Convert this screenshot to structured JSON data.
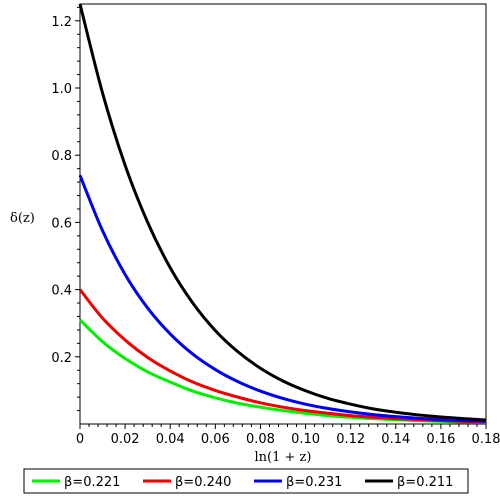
{
  "chart_data": {
    "type": "line",
    "title": "",
    "xlabel": "ln(1 + z)",
    "ylabel": "δ(z)",
    "xlim": [
      0,
      0.18
    ],
    "ylim": [
      0,
      1.25
    ],
    "xticks": [
      0,
      0.02,
      0.04,
      0.06,
      0.08,
      0.1,
      0.12,
      0.14,
      0.16,
      0.18
    ],
    "xtick_labels": [
      "0",
      "0.02",
      "0.04",
      "0.06",
      "0.08",
      "0.10",
      "0.12",
      "0.14",
      "0.16",
      "0.18"
    ],
    "yticks": [
      0.2,
      0.4,
      0.6,
      0.8,
      1.0,
      1.2
    ],
    "ytick_labels": [
      "0.2",
      "0.4",
      "0.6",
      "0.8",
      "1.0",
      "1.2"
    ],
    "grid": false,
    "legend_position": "bottom",
    "series": [
      {
        "name": "β=0.221",
        "color": "#00ee00",
        "x": [
          0,
          0.01,
          0.02,
          0.03,
          0.04,
          0.05,
          0.06,
          0.07,
          0.08,
          0.09,
          0.1,
          0.11,
          0.12,
          0.13,
          0.14,
          0.15,
          0.16,
          0.17,
          0.18
        ],
        "y": [
          0.31,
          0.245,
          0.195,
          0.155,
          0.125,
          0.098,
          0.078,
          0.062,
          0.05,
          0.04,
          0.032,
          0.025,
          0.02,
          0.016,
          0.013,
          0.01,
          0.008,
          0.006,
          0.005
        ]
      },
      {
        "name": "β=0.240",
        "color": "#ee0000",
        "x": [
          0,
          0.01,
          0.02,
          0.03,
          0.04,
          0.05,
          0.06,
          0.07,
          0.08,
          0.09,
          0.1,
          0.11,
          0.12,
          0.13,
          0.14,
          0.15,
          0.16,
          0.17,
          0.18
        ],
        "y": [
          0.4,
          0.315,
          0.25,
          0.198,
          0.158,
          0.125,
          0.1,
          0.08,
          0.063,
          0.05,
          0.04,
          0.032,
          0.025,
          0.02,
          0.016,
          0.013,
          0.01,
          0.008,
          0.006
        ]
      },
      {
        "name": "β=0.231",
        "color": "#0000ee",
        "x": [
          0,
          0.01,
          0.02,
          0.03,
          0.04,
          0.05,
          0.06,
          0.07,
          0.08,
          0.09,
          0.1,
          0.11,
          0.12,
          0.13,
          0.14,
          0.15,
          0.16,
          0.17,
          0.18
        ],
        "y": [
          0.74,
          0.575,
          0.445,
          0.345,
          0.268,
          0.208,
          0.162,
          0.126,
          0.098,
          0.076,
          0.059,
          0.046,
          0.036,
          0.028,
          0.022,
          0.017,
          0.013,
          0.01,
          0.008
        ]
      },
      {
        "name": "β=0.211",
        "color": "#000000",
        "x": [
          0,
          0.01,
          0.02,
          0.03,
          0.04,
          0.05,
          0.06,
          0.07,
          0.08,
          0.09,
          0.1,
          0.11,
          0.12,
          0.13,
          0.14,
          0.15,
          0.16,
          0.17,
          0.18
        ],
        "y": [
          1.25,
          0.985,
          0.77,
          0.6,
          0.465,
          0.36,
          0.278,
          0.215,
          0.166,
          0.128,
          0.099,
          0.076,
          0.059,
          0.045,
          0.035,
          0.027,
          0.021,
          0.016,
          0.012
        ]
      }
    ]
  }
}
